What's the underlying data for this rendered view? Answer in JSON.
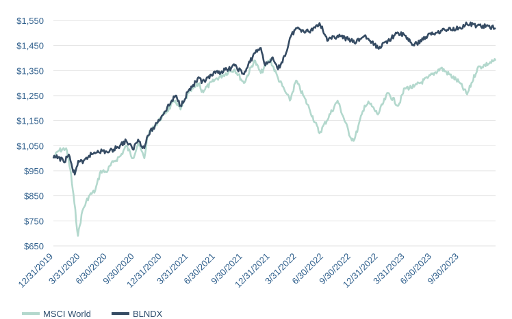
{
  "chart_data": {
    "type": "line",
    "title": "",
    "xlabel": "",
    "ylabel": "",
    "ylim": [
      650,
      1550
    ],
    "grid": "horizontal",
    "legend_position": "bottom-left",
    "colors": {
      "msci": "#b3d8cd",
      "blndx": "#354b63",
      "grid": "#e2e2e2",
      "tick_text": "#2f5f8c"
    },
    "y_ticks": [
      "$1,550",
      "$1,450",
      "$1,350",
      "$1,250",
      "$1,150",
      "$1,050",
      "$950",
      "$850",
      "$750",
      "$650"
    ],
    "y_tick_values": [
      1550,
      1450,
      1350,
      1250,
      1150,
      1050,
      950,
      850,
      750,
      650
    ],
    "x_ticks": [
      "12/31/2019",
      "3/31/2020",
      "6/30/2020",
      "9/30/2020",
      "12/31/2020",
      "3/31/2021",
      "6/30/2021",
      "9/30/2021",
      "12/31/2021",
      "3/31/2022",
      "6/30/2022",
      "9/30/2022",
      "12/31/2022",
      "3/31/2023",
      "6/30/2023",
      "9/30/2023"
    ],
    "x_tick_dates": [
      "2019-12-31",
      "2020-03-31",
      "2020-06-30",
      "2020-09-30",
      "2020-12-31",
      "2021-03-31",
      "2021-06-30",
      "2021-09-30",
      "2021-12-31",
      "2022-03-31",
      "2022-06-30",
      "2022-09-30",
      "2022-12-31",
      "2023-03-31",
      "2023-06-30",
      "2023-09-30"
    ],
    "x_range": [
      "2019-12-31",
      "2024-01-31"
    ],
    "series": [
      {
        "name": "MSCI World",
        "key": "msci",
        "points": [
          [
            "2019-12-31",
            1000
          ],
          [
            "2020-01-17",
            1030
          ],
          [
            "2020-02-12",
            1040
          ],
          [
            "2020-02-26",
            955
          ],
          [
            "2020-03-11",
            820
          ],
          [
            "2020-03-23",
            690
          ],
          [
            "2020-04-07",
            790
          ],
          [
            "2020-04-29",
            850
          ],
          [
            "2020-05-20",
            870
          ],
          [
            "2020-06-08",
            950
          ],
          [
            "2020-06-26",
            945
          ],
          [
            "2020-07-20",
            985
          ],
          [
            "2020-08-14",
            1010
          ],
          [
            "2020-09-02",
            1050
          ],
          [
            "2020-09-24",
            1000
          ],
          [
            "2020-10-12",
            1060
          ],
          [
            "2020-11-02",
            1000
          ],
          [
            "2020-11-13",
            1090
          ],
          [
            "2020-12-08",
            1130
          ],
          [
            "2020-12-31",
            1165
          ],
          [
            "2021-02-15",
            1230
          ],
          [
            "2021-03-04",
            1195
          ],
          [
            "2021-03-31",
            1260
          ],
          [
            "2021-05-07",
            1300
          ],
          [
            "2021-05-14",
            1265
          ],
          [
            "2021-06-30",
            1315
          ],
          [
            "2021-08-13",
            1345
          ],
          [
            "2021-09-03",
            1355
          ],
          [
            "2021-10-04",
            1300
          ],
          [
            "2021-11-08",
            1390
          ],
          [
            "2021-11-30",
            1340
          ],
          [
            "2021-12-31",
            1395
          ],
          [
            "2022-01-27",
            1320
          ],
          [
            "2022-02-23",
            1260
          ],
          [
            "2022-03-08",
            1230
          ],
          [
            "2022-03-29",
            1310
          ],
          [
            "2022-05-12",
            1200
          ],
          [
            "2022-06-16",
            1100
          ],
          [
            "2022-08-16",
            1230
          ],
          [
            "2022-09-30",
            1080
          ],
          [
            "2022-10-12",
            1075
          ],
          [
            "2022-11-15",
            1210
          ],
          [
            "2022-12-01",
            1220
          ],
          [
            "2022-12-30",
            1175
          ],
          [
            "2023-02-02",
            1260
          ],
          [
            "2023-03-09",
            1210
          ],
          [
            "2023-03-31",
            1280
          ],
          [
            "2023-05-01",
            1285
          ],
          [
            "2023-06-16",
            1320
          ],
          [
            "2023-07-31",
            1360
          ],
          [
            "2023-09-29",
            1305
          ],
          [
            "2023-10-27",
            1255
          ],
          [
            "2023-12-01",
            1360
          ],
          [
            "2024-01-31",
            1390
          ]
        ]
      },
      {
        "name": "BLNDX",
        "key": "blndx",
        "points": [
          [
            "2019-12-31",
            1000
          ],
          [
            "2020-01-17",
            1005
          ],
          [
            "2020-02-04",
            985
          ],
          [
            "2020-02-21",
            1015
          ],
          [
            "2020-03-04",
            960
          ],
          [
            "2020-03-12",
            935
          ],
          [
            "2020-03-24",
            990
          ],
          [
            "2020-04-08",
            980
          ],
          [
            "2020-04-29",
            1010
          ],
          [
            "2020-05-29",
            1030
          ],
          [
            "2020-07-06",
            1025
          ],
          [
            "2020-08-03",
            1045
          ],
          [
            "2020-09-02",
            1070
          ],
          [
            "2020-09-24",
            1035
          ],
          [
            "2020-10-12",
            1075
          ],
          [
            "2020-11-02",
            1040
          ],
          [
            "2020-11-13",
            1090
          ],
          [
            "2020-12-08",
            1130
          ],
          [
            "2020-12-31",
            1170
          ],
          [
            "2021-02-15",
            1250
          ],
          [
            "2021-03-04",
            1210
          ],
          [
            "2021-03-31",
            1270
          ],
          [
            "2021-05-07",
            1320
          ],
          [
            "2021-05-14",
            1300
          ],
          [
            "2021-06-30",
            1340
          ],
          [
            "2021-08-13",
            1355
          ],
          [
            "2021-09-03",
            1370
          ],
          [
            "2021-10-04",
            1335
          ],
          [
            "2021-11-08",
            1420
          ],
          [
            "2021-11-30",
            1440
          ],
          [
            "2021-12-15",
            1370
          ],
          [
            "2022-01-06",
            1400
          ],
          [
            "2022-01-27",
            1355
          ],
          [
            "2022-02-23",
            1420
          ],
          [
            "2022-03-08",
            1480
          ],
          [
            "2022-03-29",
            1520
          ],
          [
            "2022-05-12",
            1505
          ],
          [
            "2022-06-16",
            1540
          ],
          [
            "2022-07-15",
            1470
          ],
          [
            "2022-08-16",
            1490
          ],
          [
            "2022-09-30",
            1470
          ],
          [
            "2022-10-12",
            1460
          ],
          [
            "2022-11-15",
            1490
          ],
          [
            "2022-12-01",
            1470
          ],
          [
            "2022-12-30",
            1440
          ],
          [
            "2023-02-02",
            1470
          ],
          [
            "2023-03-09",
            1500
          ],
          [
            "2023-03-31",
            1490
          ],
          [
            "2023-05-01",
            1450
          ],
          [
            "2023-06-16",
            1490
          ],
          [
            "2023-07-31",
            1510
          ],
          [
            "2023-09-29",
            1520
          ],
          [
            "2023-10-27",
            1535
          ],
          [
            "2023-12-01",
            1530
          ],
          [
            "2024-01-31",
            1520
          ]
        ]
      }
    ]
  }
}
